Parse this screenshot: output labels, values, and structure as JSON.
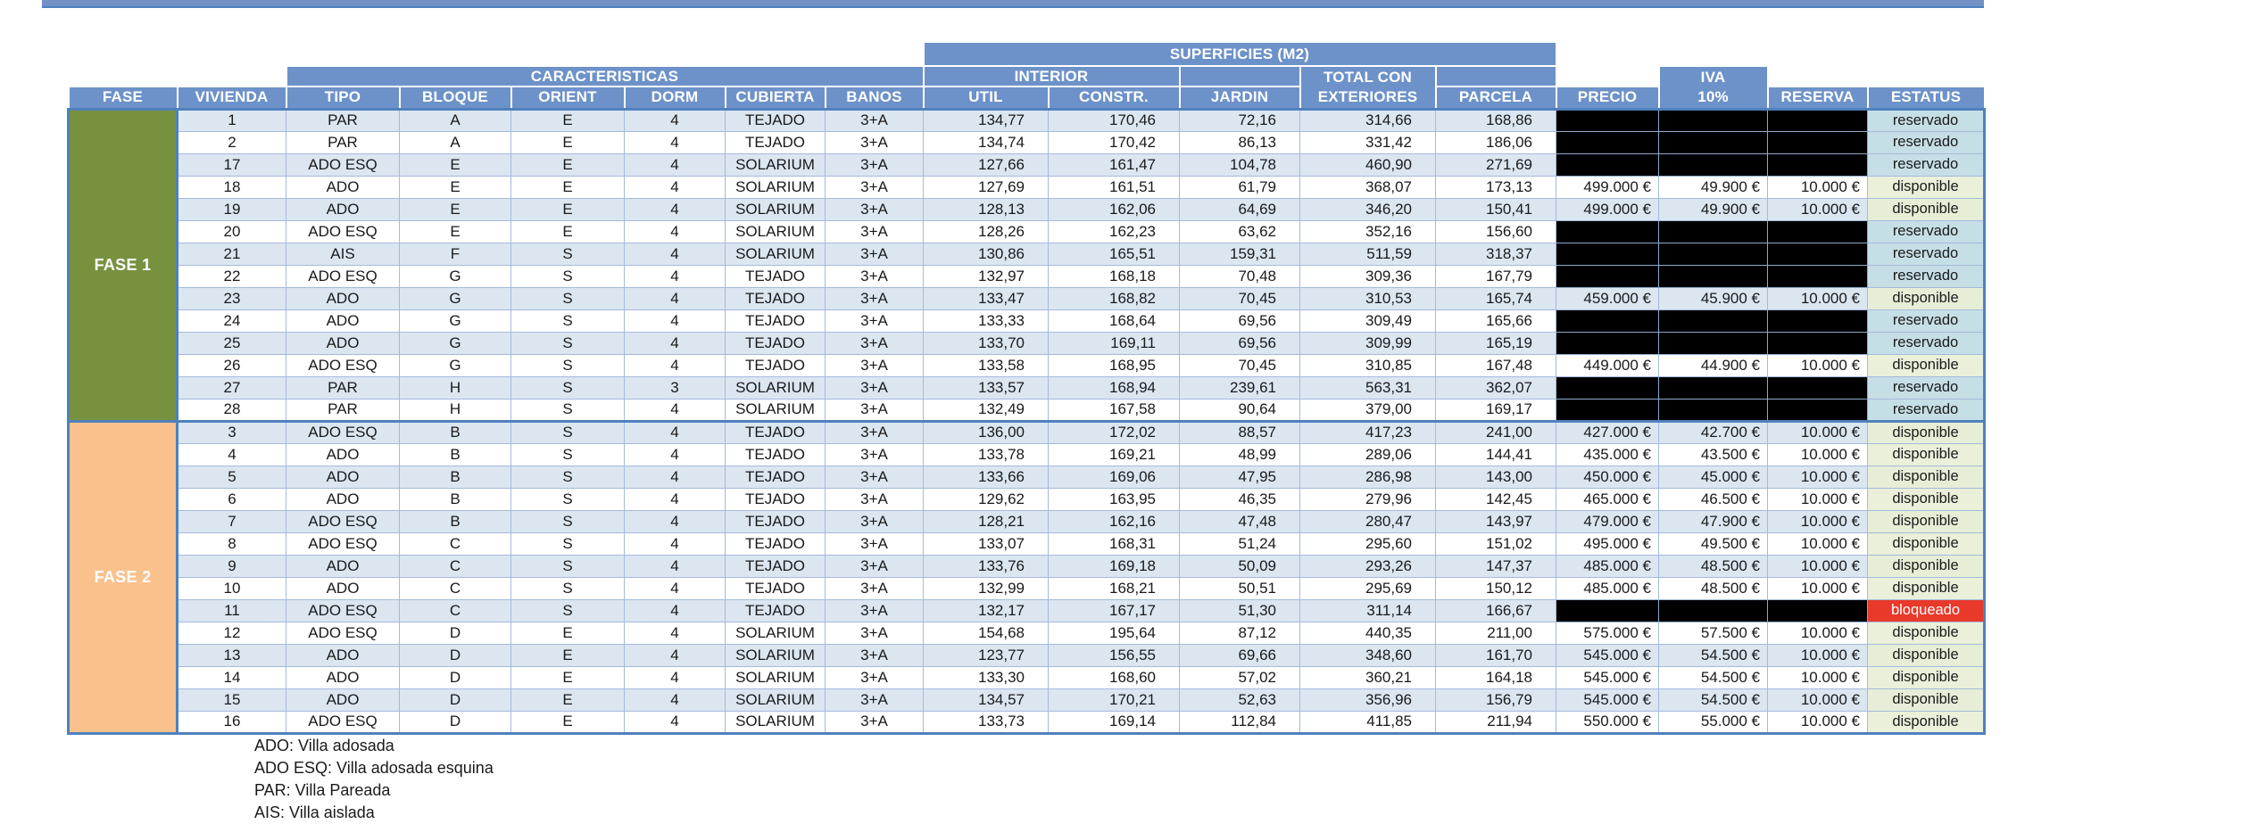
{
  "colors": {
    "header_blue": "#6d92c9",
    "grid_blue": "#4f81bd",
    "fase1_green": "#78913f",
    "fase2_tan": "#fac18d",
    "row_shade": "#dce6f1",
    "reservado_bg": "#c6dfe6",
    "disponible_bg": "#eaf0da",
    "bloqueado_bg": "#e8392a",
    "empty_cell": "#000000"
  },
  "headers": {
    "superficies": "SUPERFICIES (M2)",
    "caracteristicas": "CARACTERISTICAS",
    "interior": "INTERIOR",
    "total_con": "TOTAL CON",
    "exteriores": "EXTERIORES",
    "iva": "IVA",
    "iva_pct": "10%",
    "fase": "FASE",
    "vivienda": "VIVIENDA",
    "tipo": "TIPO",
    "bloque": "BLOQUE",
    "orient": "ORIENT",
    "dorm": "DORM",
    "cubierta": "CUBIERTA",
    "banos": "BANOS",
    "util": "UTIL",
    "constr": "CONSTR.",
    "jardin": "JARDIN",
    "parcela": "PARCELA",
    "precio": "PRECIO",
    "reserva": "RESERVA",
    "estatus": "ESTATUS"
  },
  "table": {
    "sections": [
      {
        "label": "FASE 1",
        "rows": [
          [
            "1",
            "PAR",
            "A",
            "E",
            "4",
            "TEJADO",
            "3+A",
            "134,77",
            "170,46",
            "72,16",
            "314,66",
            "168,86",
            "",
            "",
            "",
            "reservado"
          ],
          [
            "2",
            "PAR",
            "A",
            "E",
            "4",
            "TEJADO",
            "3+A",
            "134,74",
            "170,42",
            "86,13",
            "331,42",
            "186,06",
            "",
            "",
            "",
            "reservado"
          ],
          [
            "17",
            "ADO ESQ",
            "E",
            "E",
            "4",
            "SOLARIUM",
            "3+A",
            "127,66",
            "161,47",
            "104,78",
            "460,90",
            "271,69",
            "",
            "",
            "",
            "reservado"
          ],
          [
            "18",
            "ADO",
            "E",
            "E",
            "4",
            "SOLARIUM",
            "3+A",
            "127,69",
            "161,51",
            "61,79",
            "368,07",
            "173,13",
            "499.000 €",
            "49.900 €",
            "10.000 €",
            "disponible"
          ],
          [
            "19",
            "ADO",
            "E",
            "E",
            "4",
            "SOLARIUM",
            "3+A",
            "128,13",
            "162,06",
            "64,69",
            "346,20",
            "150,41",
            "499.000 €",
            "49.900 €",
            "10.000 €",
            "disponible"
          ],
          [
            "20",
            "ADO ESQ",
            "E",
            "E",
            "4",
            "SOLARIUM",
            "3+A",
            "128,26",
            "162,23",
            "63,62",
            "352,16",
            "156,60",
            "",
            "",
            "",
            "reservado"
          ],
          [
            "21",
            "AIS",
            "F",
            "S",
            "4",
            "SOLARIUM",
            "3+A",
            "130,86",
            "165,51",
            "159,31",
            "511,59",
            "318,37",
            "",
            "",
            "",
            "reservado"
          ],
          [
            "22",
            "ADO ESQ",
            "G",
            "S",
            "4",
            "TEJADO",
            "3+A",
            "132,97",
            "168,18",
            "70,48",
            "309,36",
            "167,79",
            "",
            "",
            "",
            "reservado"
          ],
          [
            "23",
            "ADO",
            "G",
            "S",
            "4",
            "TEJADO",
            "3+A",
            "133,47",
            "168,82",
            "70,45",
            "310,53",
            "165,74",
            "459.000 €",
            "45.900 €",
            "10.000 €",
            "disponible"
          ],
          [
            "24",
            "ADO",
            "G",
            "S",
            "4",
            "TEJADO",
            "3+A",
            "133,33",
            "168,64",
            "69,56",
            "309,49",
            "165,66",
            "",
            "",
            "",
            "reservado"
          ],
          [
            "25",
            "ADO",
            "G",
            "S",
            "4",
            "TEJADO",
            "3+A",
            "133,70",
            "169,11",
            "69,56",
            "309,99",
            "165,19",
            "",
            "",
            "",
            "reservado"
          ],
          [
            "26",
            "ADO ESQ",
            "G",
            "S",
            "4",
            "TEJADO",
            "3+A",
            "133,58",
            "168,95",
            "70,45",
            "310,85",
            "167,48",
            "449.000 €",
            "44.900 €",
            "10.000 €",
            "disponible"
          ],
          [
            "27",
            "PAR",
            "H",
            "S",
            "3",
            "SOLARIUM",
            "3+A",
            "133,57",
            "168,94",
            "239,61",
            "563,31",
            "362,07",
            "",
            "",
            "",
            "reservado"
          ],
          [
            "28",
            "PAR",
            "H",
            "S",
            "4",
            "SOLARIUM",
            "3+A",
            "132,49",
            "167,58",
            "90,64",
            "379,00",
            "169,17",
            "",
            "",
            "",
            "reservado"
          ]
        ]
      },
      {
        "label": "FASE 2",
        "rows": [
          [
            "3",
            "ADO ESQ",
            "B",
            "S",
            "4",
            "TEJADO",
            "3+A",
            "136,00",
            "172,02",
            "88,57",
            "417,23",
            "241,00",
            "427.000 €",
            "42.700 €",
            "10.000 €",
            "disponible"
          ],
          [
            "4",
            "ADO",
            "B",
            "S",
            "4",
            "TEJADO",
            "3+A",
            "133,78",
            "169,21",
            "48,99",
            "289,06",
            "144,41",
            "435.000 €",
            "43.500 €",
            "10.000 €",
            "disponible"
          ],
          [
            "5",
            "ADO",
            "B",
            "S",
            "4",
            "TEJADO",
            "3+A",
            "133,66",
            "169,06",
            "47,95",
            "286,98",
            "143,00",
            "450.000 €",
            "45.000 €",
            "10.000 €",
            "disponible"
          ],
          [
            "6",
            "ADO",
            "B",
            "S",
            "4",
            "TEJADO",
            "3+A",
            "129,62",
            "163,95",
            "46,35",
            "279,96",
            "142,45",
            "465.000 €",
            "46.500 €",
            "10.000 €",
            "disponible"
          ],
          [
            "7",
            "ADO ESQ",
            "B",
            "S",
            "4",
            "TEJADO",
            "3+A",
            "128,21",
            "162,16",
            "47,48",
            "280,47",
            "143,97",
            "479.000 €",
            "47.900 €",
            "10.000 €",
            "disponible"
          ],
          [
            "8",
            "ADO ESQ",
            "C",
            "S",
            "4",
            "TEJADO",
            "3+A",
            "133,07",
            "168,31",
            "51,24",
            "295,60",
            "151,02",
            "495.000 €",
            "49.500 €",
            "10.000 €",
            "disponible"
          ],
          [
            "9",
            "ADO",
            "C",
            "S",
            "4",
            "TEJADO",
            "3+A",
            "133,76",
            "169,18",
            "50,09",
            "293,26",
            "147,37",
            "485.000 €",
            "48.500 €",
            "10.000 €",
            "disponible"
          ],
          [
            "10",
            "ADO",
            "C",
            "S",
            "4",
            "TEJADO",
            "3+A",
            "132,99",
            "168,21",
            "50,51",
            "295,69",
            "150,12",
            "485.000 €",
            "48.500 €",
            "10.000 €",
            "disponible"
          ],
          [
            "11",
            "ADO ESQ",
            "C",
            "S",
            "4",
            "TEJADO",
            "3+A",
            "132,17",
            "167,17",
            "51,30",
            "311,14",
            "166,67",
            "",
            "",
            "",
            "bloqueado"
          ],
          [
            "12",
            "ADO ESQ",
            "D",
            "E",
            "4",
            "SOLARIUM",
            "3+A",
            "154,68",
            "195,64",
            "87,12",
            "440,35",
            "211,00",
            "575.000 €",
            "57.500 €",
            "10.000 €",
            "disponible"
          ],
          [
            "13",
            "ADO",
            "D",
            "E",
            "4",
            "SOLARIUM",
            "3+A",
            "123,77",
            "156,55",
            "69,66",
            "348,60",
            "161,70",
            "545.000 €",
            "54.500 €",
            "10.000 €",
            "disponible"
          ],
          [
            "14",
            "ADO",
            "D",
            "E",
            "4",
            "SOLARIUM",
            "3+A",
            "133,30",
            "168,60",
            "57,02",
            "360,21",
            "164,18",
            "545.000 €",
            "54.500 €",
            "10.000 €",
            "disponible"
          ],
          [
            "15",
            "ADO",
            "D",
            "E",
            "4",
            "SOLARIUM",
            "3+A",
            "134,57",
            "170,21",
            "52,63",
            "356,96",
            "156,79",
            "545.000 €",
            "54.500 €",
            "10.000 €",
            "disponible"
          ],
          [
            "16",
            "ADO ESQ",
            "D",
            "E",
            "4",
            "SOLARIUM",
            "3+A",
            "133,73",
            "169,14",
            "112,84",
            "411,85",
            "211,94",
            "550.000 €",
            "55.000 €",
            "10.000 €",
            "disponible"
          ]
        ]
      }
    ]
  },
  "legend": [
    "ADO: Villa adosada",
    "ADO ESQ: Villa adosada esquina",
    "PAR: Villa Pareada",
    "AIS: Villa aislada"
  ]
}
